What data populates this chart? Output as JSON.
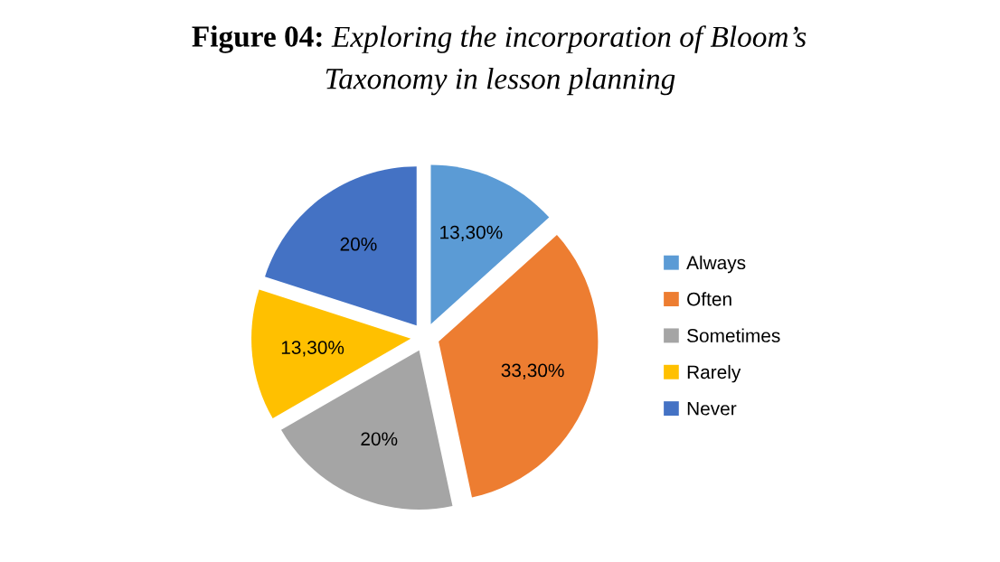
{
  "chart_data": {
    "type": "pie",
    "title": "Figure 04: Exploring the incorporation of Bloom’s Taxonomy in lesson planning",
    "categories": [
      "Always",
      "Often",
      "Sometimes",
      "Rarely",
      "Never"
    ],
    "values": [
      13.3,
      33.3,
      20,
      13.3,
      20
    ],
    "value_labels": [
      "13,30%",
      "33,30%",
      "20%",
      "13,30%",
      "20%"
    ],
    "colors": [
      "#5b9bd5",
      "#ed7d31",
      "#a5a5a5",
      "#ffc000",
      "#4472c4"
    ],
    "legend": "right"
  }
}
